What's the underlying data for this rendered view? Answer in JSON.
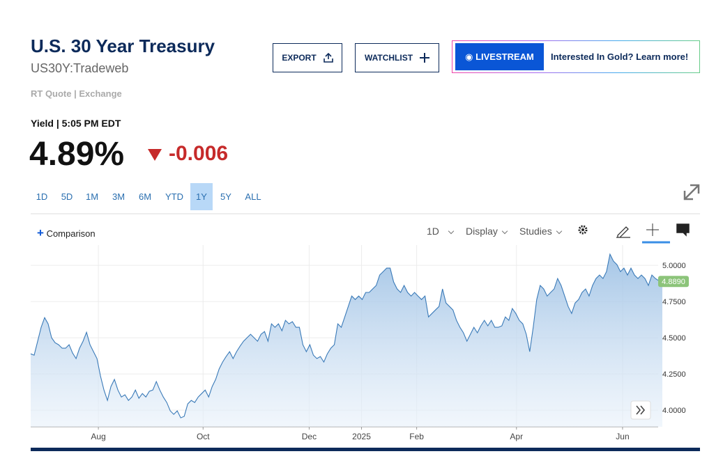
{
  "header": {
    "title": "U.S. 30 Year Treasury",
    "symbol": "US30Y:Tradeweb",
    "quote_type": "RT Quote | Exchange"
  },
  "actions": {
    "export": "EXPORT",
    "watchlist": "WATCHLIST",
    "livestream": "LIVESTREAM",
    "promo": "Interested In Gold? Learn more!"
  },
  "quote": {
    "label": "Yield | 5:05 PM EDT",
    "last": "4.89%",
    "change": "-0.006"
  },
  "ranges": [
    "1D",
    "5D",
    "1M",
    "3M",
    "6M",
    "YTD",
    "1Y",
    "5Y",
    "ALL"
  ],
  "toolbar": {
    "comparison": "Comparison",
    "interval": "1D",
    "display": "Display",
    "studies": "Studies"
  },
  "chart_data": {
    "type": "area",
    "color": "#3a7ab8",
    "values": [
      4.389,
      4.38,
      4.476,
      4.572,
      4.639,
      4.596,
      4.5,
      4.466,
      4.452,
      4.428,
      4.428,
      4.452,
      4.394,
      4.356,
      4.428,
      4.476,
      4.538,
      4.452,
      4.404,
      4.356,
      4.236,
      4.139,
      4.067,
      4.163,
      4.212,
      4.139,
      4.091,
      4.106,
      4.067,
      4.091,
      4.139,
      4.082,
      4.115,
      4.091,
      4.13,
      4.139,
      4.197,
      4.139,
      4.091,
      4.053,
      3.995,
      3.971,
      3.995,
      3.947,
      3.957,
      4.043,
      4.067,
      4.053,
      4.091,
      4.115,
      4.139,
      4.091,
      4.163,
      4.212,
      4.284,
      4.332,
      4.37,
      4.404,
      4.356,
      4.404,
      4.442,
      4.476,
      4.5,
      4.524,
      4.5,
      4.476,
      4.524,
      4.543,
      4.476,
      4.596,
      4.572,
      4.596,
      4.548,
      4.62,
      4.596,
      4.611,
      4.572,
      4.572,
      4.452,
      4.404,
      4.452,
      4.38,
      4.356,
      4.37,
      4.332,
      4.389,
      4.428,
      4.452,
      4.596,
      4.572,
      4.644,
      4.716,
      4.788,
      4.764,
      4.788,
      4.764,
      4.813,
      4.813,
      4.837,
      4.861,
      4.933,
      4.957,
      4.981,
      4.981,
      4.885,
      4.837,
      4.813,
      4.861,
      4.813,
      4.788,
      4.813,
      4.788,
      4.764,
      4.788,
      4.644,
      4.668,
      4.692,
      4.716,
      4.837,
      4.74,
      4.716,
      4.692,
      4.62,
      4.572,
      4.534,
      4.476,
      4.524,
      4.572,
      4.534,
      4.582,
      4.62,
      4.582,
      4.62,
      4.572,
      4.572,
      4.582,
      4.644,
      4.62,
      4.702,
      4.668,
      4.62,
      4.596,
      4.524,
      4.404,
      4.572,
      4.764,
      4.861,
      4.837,
      4.788,
      4.813,
      4.837,
      4.909,
      4.861,
      4.788,
      4.716,
      4.668,
      4.74,
      4.764,
      4.813,
      4.837,
      4.788,
      4.861,
      4.909,
      4.933,
      4.909,
      4.957,
      5.077,
      5.029,
      5.005,
      4.957,
      4.981,
      4.933,
      4.981,
      4.933,
      4.909,
      4.933,
      4.909,
      4.861,
      4.933,
      4.909,
      4.894,
      4.889
    ],
    "last_label": "4.8890",
    "xlim": [
      0,
      179
    ],
    "xticks": [
      {
        "value": 19.4,
        "label": "Aug"
      },
      {
        "value": 49.4,
        "label": "Oct"
      },
      {
        "value": 79.8,
        "label": "Dec"
      },
      {
        "value": 94.8,
        "label": "2025"
      },
      {
        "value": 110.6,
        "label": "Feb"
      },
      {
        "value": 139.2,
        "label": "Apr"
      },
      {
        "value": 169.6,
        "label": "Jun"
      }
    ],
    "ylim": [
      3.885,
      5.14
    ],
    "yticks": [
      {
        "value": 4,
        "label": "4.0000"
      },
      {
        "value": 4.25,
        "label": "4.2500"
      },
      {
        "value": 4.5,
        "label": "4.5000"
      },
      {
        "value": 4.75,
        "label": "4.7500"
      },
      {
        "value": 5,
        "label": "5.0000"
      }
    ],
    "grid": true
  }
}
